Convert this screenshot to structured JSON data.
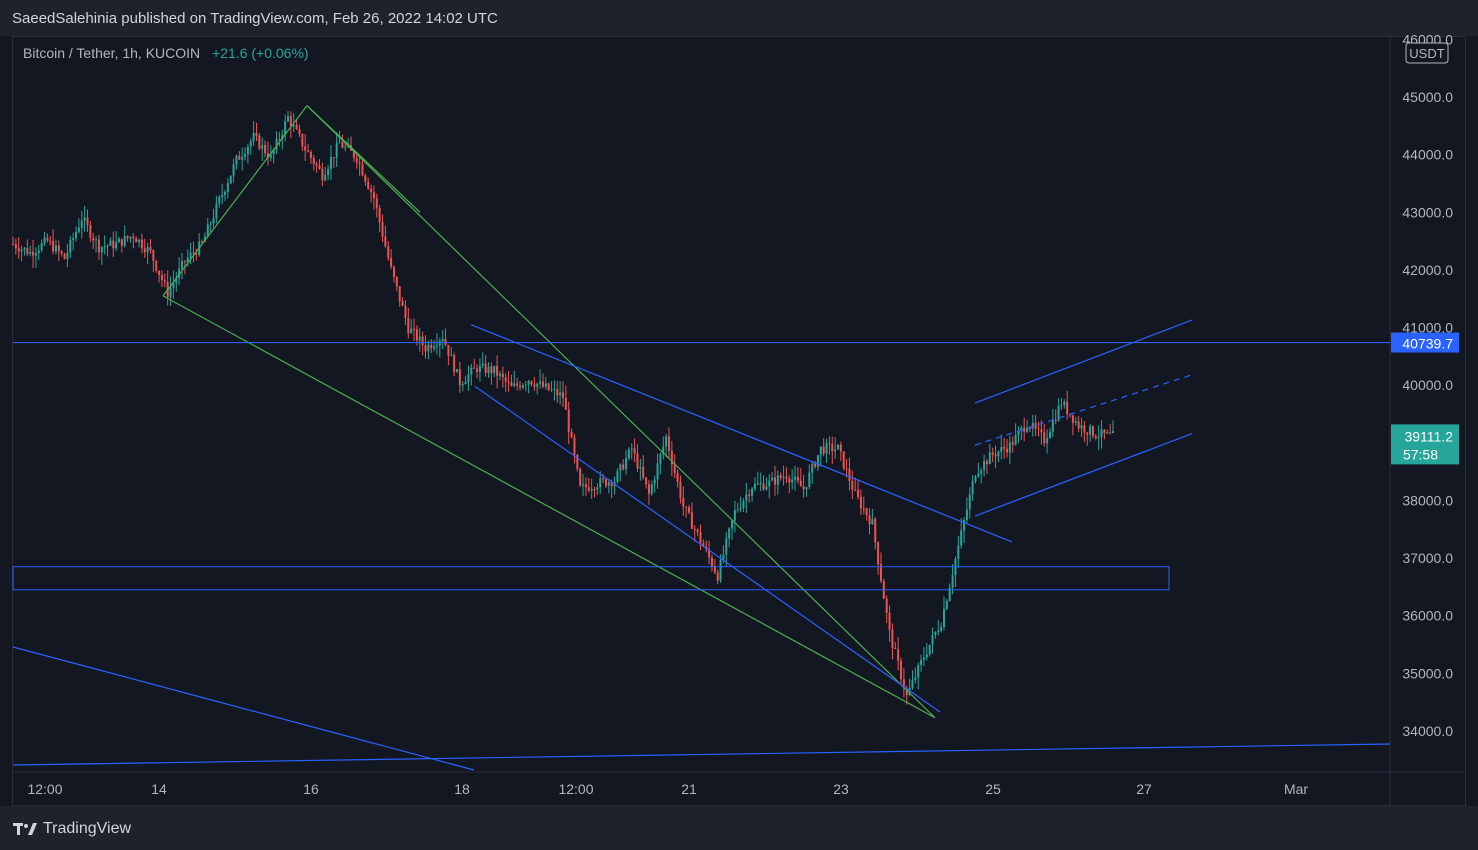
{
  "header": {
    "published_line": "SaeedSalehinia published on TradingView.com, Feb 26, 2022 14:02 UTC"
  },
  "legend": {
    "symbol": "Bitcoin / Tether, 1h, KUCOIN",
    "change": "+21.6 (+0.06%)"
  },
  "footer": {
    "brand": "TradingView"
  },
  "colors": {
    "background": "#131722",
    "up": "#26a69a",
    "down": "#ef5350",
    "trendline_blue": "#2962ff",
    "trendline_green": "#4caf50",
    "price_label": "#2962ff"
  },
  "chart_data": {
    "type": "candlestick",
    "title": "Bitcoin / Tether, 1h, KUCOIN",
    "currency": "USDT",
    "yticks": [
      "46000.0",
      "45000.0",
      "44000.0",
      "43000.0",
      "42000.0",
      "41000.0",
      "40000.0",
      "39000.0",
      "38000.0",
      "37000.0",
      "36000.0",
      "35000.0",
      "34000.0"
    ],
    "ylim": [
      33300,
      46000
    ],
    "xticks": [
      "12:00",
      "14",
      "16",
      "18",
      "12:00",
      "21",
      "23",
      "25",
      "27",
      "Mar"
    ],
    "horizontal_line": {
      "value": 40739.7,
      "label": "40739.7"
    },
    "last_price": {
      "value": 39111.2,
      "label": "39111.2",
      "countdown": "57:58"
    },
    "price_path": [
      [
        0,
        42450
      ],
      [
        6,
        42300
      ],
      [
        12,
        42500
      ],
      [
        18,
        42200
      ],
      [
        24,
        42900
      ],
      [
        30,
        42400
      ],
      [
        36,
        42450
      ],
      [
        42,
        42600
      ],
      [
        48,
        42300
      ],
      [
        54,
        41600
      ],
      [
        60,
        42150
      ],
      [
        66,
        42450
      ],
      [
        72,
        43200
      ],
      [
        78,
        43900
      ],
      [
        84,
        44300
      ],
      [
        90,
        43950
      ],
      [
        96,
        44650
      ],
      [
        102,
        44100
      ],
      [
        108,
        43650
      ],
      [
        114,
        44200
      ],
      [
        120,
        43950
      ],
      [
        126,
        43250
      ],
      [
        132,
        42000
      ],
      [
        138,
        41000
      ],
      [
        144,
        40650
      ],
      [
        150,
        40850
      ],
      [
        156,
        40050
      ],
      [
        162,
        40300
      ],
      [
        168,
        40250
      ],
      [
        174,
        39950
      ],
      [
        180,
        40100
      ],
      [
        186,
        39950
      ],
      [
        192,
        39800
      ],
      [
        198,
        38200
      ],
      [
        204,
        38300
      ],
      [
        210,
        38350
      ],
      [
        216,
        38900
      ],
      [
        222,
        38100
      ],
      [
        228,
        39100
      ],
      [
        234,
        37900
      ],
      [
        240,
        37300
      ],
      [
        246,
        36700
      ],
      [
        252,
        37800
      ],
      [
        258,
        38250
      ],
      [
        264,
        38300
      ],
      [
        270,
        38450
      ],
      [
        276,
        38200
      ],
      [
        282,
        38900
      ],
      [
        288,
        38900
      ],
      [
        294,
        38100
      ],
      [
        300,
        37600
      ],
      [
        306,
        35700
      ],
      [
        312,
        34600
      ],
      [
        318,
        35300
      ],
      [
        324,
        35900
      ],
      [
        330,
        37200
      ],
      [
        336,
        38500
      ],
      [
        342,
        38800
      ],
      [
        348,
        38950
      ],
      [
        354,
        39350
      ],
      [
        360,
        39050
      ],
      [
        366,
        39700
      ],
      [
        372,
        39300
      ],
      [
        378,
        39150
      ],
      [
        384,
        39111
      ]
    ],
    "annotations": {
      "green_wedge_lines": 4,
      "blue_channel_lines": 6,
      "support_zone": [
        36450,
        36850
      ]
    }
  }
}
